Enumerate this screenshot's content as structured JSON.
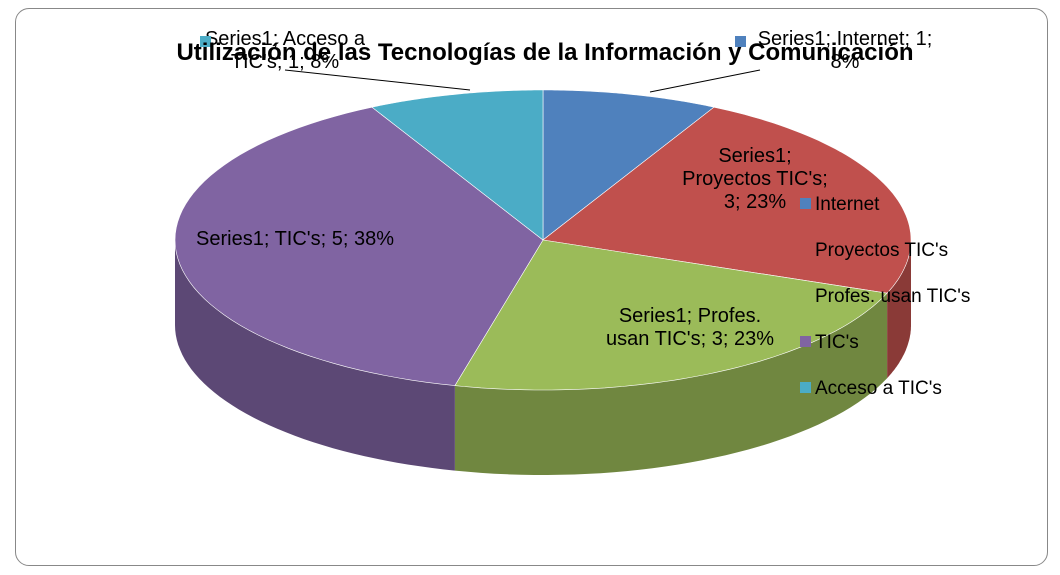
{
  "chart_data": {
    "type": "pie3d",
    "title": "Utilización de las Tecnologías de la Información y Comunicación",
    "series": [
      {
        "name": "Series1",
        "values": [
          1,
          3,
          3,
          5,
          1
        ],
        "value_labels": [
          "Series1; Internet; 1; 8%",
          "Series1; Proyectos TIC's; 3; 23%",
          "Series1; Profes. usan TIC's; 3; 23%",
          "Series1; TIC's; 5; 38%",
          "Series1; Acceso a TIC's; 1; 8%"
        ]
      }
    ],
    "categories": [
      "Internet",
      "Proyectos TIC's",
      "Profes. usan TIC's",
      "TIC's",
      "Acceso a TIC's"
    ],
    "colors": [
      "#4f81bd",
      "#c0504d",
      "#9bbb59",
      "#8064a2",
      "#4bacc6"
    ],
    "legend": "right"
  }
}
